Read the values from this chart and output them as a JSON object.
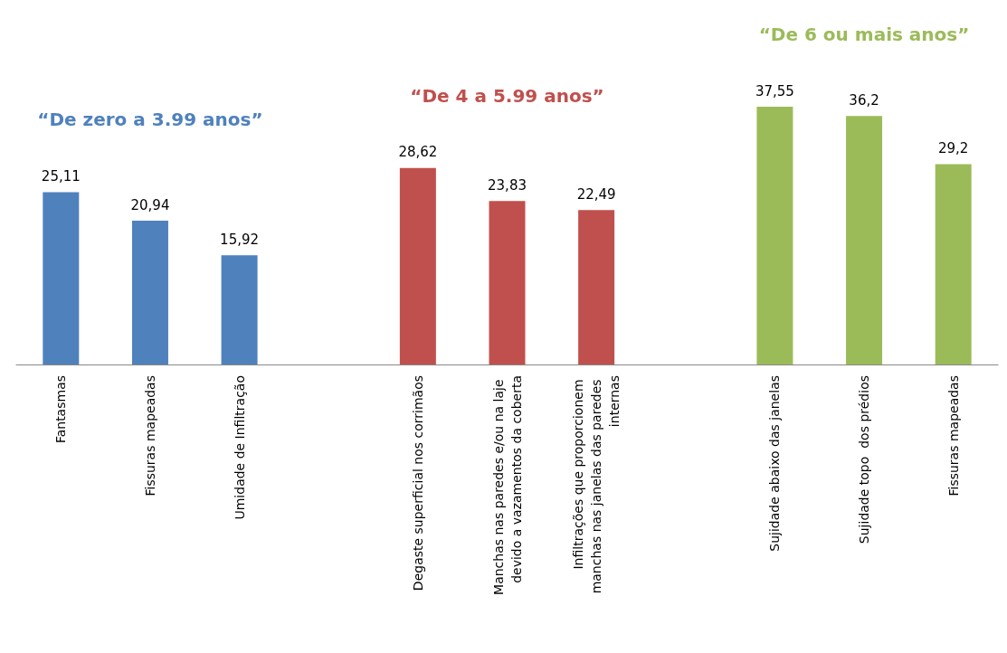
{
  "chart_data": {
    "type": "bar",
    "categories": [
      "Fantasmas",
      "Fissuras mapeadas",
      "Umidade de Infiltração",
      null,
      "Degaste superficial nos corrimãos",
      "Manchas nas paredes e/ou na laje devido a vazamentos da coberta",
      "Infiltrações que proporcionem manchas nas janelas das paredes internas",
      null,
      "Sujidade abaixo das janelas",
      "Sujidade topo  dos prédios",
      "Fissuras mapeadas"
    ],
    "series": [
      {
        "name": "“De zero a 3.99 anos”",
        "color": "#4f81bd",
        "values": [
          25.11,
          20.94,
          15.92,
          null,
          null,
          null,
          null,
          null,
          null,
          null,
          null
        ],
        "value_labels": [
          "25,11",
          "20,94",
          "15,92",
          null,
          null,
          null,
          null,
          null,
          null,
          null,
          null
        ]
      },
      {
        "name": "“De 4 a 5.99 anos”",
        "color": "#c0504d",
        "values": [
          null,
          null,
          null,
          null,
          28.62,
          23.83,
          22.49,
          null,
          null,
          null,
          null
        ],
        "value_labels": [
          null,
          null,
          null,
          null,
          "28,62",
          "23,83",
          "22,49",
          null,
          null,
          null,
          null
        ]
      },
      {
        "name": "“De 6 ou mais anos”",
        "color": "#9bbb59",
        "values": [
          null,
          null,
          null,
          null,
          null,
          null,
          null,
          null,
          37.55,
          36.2,
          29.2
        ],
        "value_labels": [
          null,
          null,
          null,
          null,
          null,
          null,
          null,
          null,
          "37,55",
          "36,2",
          "29,2"
        ]
      }
    ],
    "grid": false,
    "legend": false
  }
}
